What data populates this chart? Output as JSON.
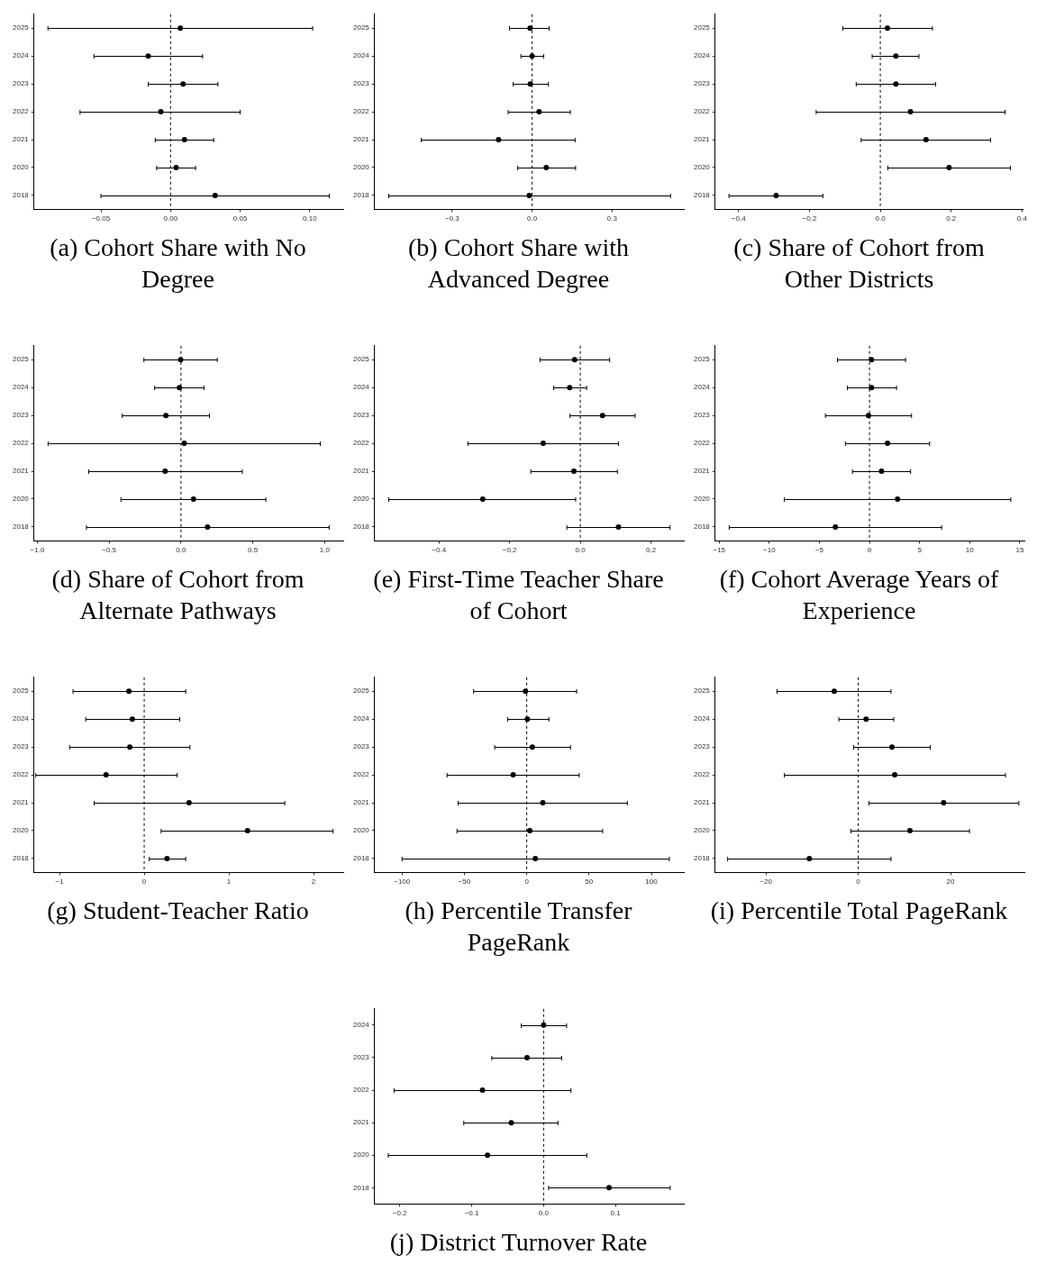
{
  "chart_data": [
    {
      "type": "scatter",
      "orientation": "horizontal",
      "title": "(a) Cohort Share with No Degree",
      "categories": [
        "2025",
        "2024",
        "2023",
        "2022",
        "2021",
        "2020",
        "2018"
      ],
      "values": [
        0.007,
        -0.016,
        0.009,
        -0.007,
        0.01,
        0.004,
        0.032
      ],
      "errors": [
        [
          -0.088,
          0.102
        ],
        [
          -0.055,
          0.023
        ],
        [
          -0.016,
          0.034
        ],
        [
          -0.065,
          0.05
        ],
        [
          -0.011,
          0.031
        ],
        [
          -0.01,
          0.018
        ],
        [
          -0.05,
          0.114
        ]
      ],
      "color": "#000000",
      "marker": "circle",
      "xlim": [
        -0.098,
        0.124
      ],
      "xticks": [
        {
          "value": -0.05,
          "label": "−0.05"
        },
        {
          "value": 0,
          "label": "0.00"
        },
        {
          "value": 0.05,
          "label": "0.05"
        },
        {
          "value": 0.1,
          "label": "0.10"
        }
      ],
      "ref_lines": [
        {
          "axis": "x",
          "value": 0,
          "line_style": "dashed",
          "color": "#000000"
        }
      ]
    },
    {
      "type": "scatter",
      "orientation": "horizontal",
      "title": "(b) Cohort Share with Advanced Degree",
      "categories": [
        "2025",
        "2024",
        "2023",
        "2022",
        "2021",
        "2020",
        "2018"
      ],
      "values": [
        -0.008,
        0.0,
        -0.007,
        0.026,
        -0.126,
        0.053,
        -0.011
      ],
      "errors": [
        [
          -0.085,
          0.064
        ],
        [
          -0.042,
          0.043
        ],
        [
          -0.071,
          0.061
        ],
        [
          -0.09,
          0.143
        ],
        [
          -0.416,
          0.161
        ],
        [
          -0.054,
          0.163
        ],
        [
          -0.538,
          0.519
        ]
      ],
      "color": "#000000",
      "marker": "circle",
      "xlim": [
        -0.591,
        0.569
      ],
      "xticks": [
        {
          "value": -0.3,
          "label": "−0.3"
        },
        {
          "value": 0,
          "label": "0.0"
        },
        {
          "value": 0.3,
          "label": "0.3"
        }
      ],
      "ref_lines": [
        {
          "axis": "x",
          "value": 0,
          "line_style": "dashed",
          "color": "#000000"
        }
      ]
    },
    {
      "type": "scatter",
      "orientation": "horizontal",
      "title": "(c) Share of Cohort from Other Districts",
      "categories": [
        "2025",
        "2024",
        "2023",
        "2022",
        "2021",
        "2020",
        "2018"
      ],
      "values": [
        0.02,
        0.044,
        0.044,
        0.085,
        0.129,
        0.194,
        -0.294
      ],
      "errors": [
        [
          -0.106,
          0.147
        ],
        [
          -0.023,
          0.109
        ],
        [
          -0.068,
          0.156
        ],
        [
          -0.181,
          0.352
        ],
        [
          -0.054,
          0.311
        ],
        [
          0.021,
          0.367
        ],
        [
          -0.427,
          -0.162
        ]
      ],
      "color": "#000000",
      "marker": "circle",
      "xlim": [
        -0.466,
        0.403
      ],
      "xticks": [
        {
          "value": -0.4,
          "label": "−0.4"
        },
        {
          "value": -0.2,
          "label": "−0.2"
        },
        {
          "value": 0,
          "label": "0.0"
        },
        {
          "value": 0.2,
          "label": "0.2"
        },
        {
          "value": 0.4,
          "label": "0.4"
        }
      ],
      "ref_lines": [
        {
          "axis": "x",
          "value": 0,
          "line_style": "dashed",
          "color": "#000000"
        }
      ]
    },
    {
      "type": "scatter",
      "orientation": "horizontal",
      "title": "(d) Share of Cohort from Alternate Pathways",
      "categories": [
        "2025",
        "2024",
        "2023",
        "2022",
        "2021",
        "2020",
        "2018"
      ],
      "values": [
        -0.002,
        -0.011,
        -0.105,
        0.023,
        -0.11,
        0.087,
        0.185
      ],
      "errors": [
        [
          -0.258,
          0.253
        ],
        [
          -0.183,
          0.16
        ],
        [
          -0.409,
          0.199
        ],
        [
          -0.925,
          0.97
        ],
        [
          -0.642,
          0.427
        ],
        [
          -0.418,
          0.591
        ],
        [
          -0.658,
          1.032
        ]
      ],
      "color": "#000000",
      "marker": "circle",
      "xlim": [
        -1.023,
        1.13
      ],
      "xticks": [
        {
          "value": -1,
          "label": "−1.0"
        },
        {
          "value": -0.5,
          "label": "−0.5"
        },
        {
          "value": 0,
          "label": "0.0"
        },
        {
          "value": 0.5,
          "label": "0.5"
        },
        {
          "value": 1,
          "label": "1.0"
        }
      ],
      "ref_lines": [
        {
          "axis": "x",
          "value": 0,
          "line_style": "dashed",
          "color": "#000000"
        }
      ]
    },
    {
      "type": "scatter",
      "orientation": "horizontal",
      "title": "(e) First-Time Teacher Share of Cohort",
      "categories": [
        "2025",
        "2024",
        "2023",
        "2022",
        "2021",
        "2020",
        "2018"
      ],
      "values": [
        -0.016,
        -0.03,
        0.063,
        -0.105,
        -0.018,
        -0.276,
        0.108
      ],
      "errors": [
        [
          -0.114,
          0.083
        ],
        [
          -0.075,
          0.018
        ],
        [
          -0.029,
          0.155
        ],
        [
          -0.318,
          0.108
        ],
        [
          -0.14,
          0.105
        ],
        [
          -0.542,
          -0.013
        ],
        [
          -0.038,
          0.254
        ]
      ],
      "color": "#000000",
      "marker": "circle",
      "xlim": [
        -0.582,
        0.293
      ],
      "xticks": [
        {
          "value": -0.4,
          "label": "−0.4"
        },
        {
          "value": -0.2,
          "label": "−0.2"
        },
        {
          "value": 0,
          "label": "0.0"
        },
        {
          "value": 0.2,
          "label": "0.2"
        }
      ],
      "ref_lines": [
        {
          "axis": "x",
          "value": 0,
          "line_style": "dashed",
          "color": "#000000"
        }
      ]
    },
    {
      "type": "scatter",
      "orientation": "horizontal",
      "title": "(f) Cohort Average Years of Experience",
      "categories": [
        "2025",
        "2024",
        "2023",
        "2022",
        "2021",
        "2020",
        "2018"
      ],
      "values": [
        0.2,
        0.2,
        -0.1,
        1.8,
        1.2,
        2.8,
        -3.4
      ],
      "errors": [
        [
          -3.2,
          3.6
        ],
        [
          -2.2,
          2.7
        ],
        [
          -4.4,
          4.2
        ],
        [
          -2.4,
          6.0
        ],
        [
          -1.7,
          4.1
        ],
        [
          -8.5,
          14.1
        ],
        [
          -14.0,
          7.2
        ]
      ],
      "color": "#000000",
      "marker": "circle",
      "xlim": [
        -15.4,
        15.46
      ],
      "xticks": [
        {
          "value": -15,
          "label": "−15"
        },
        {
          "value": -10,
          "label": "−10"
        },
        {
          "value": -5,
          "label": "−5"
        },
        0,
        5,
        10,
        15
      ],
      "ref_lines": [
        {
          "axis": "x",
          "value": 0,
          "line_style": "dashed",
          "color": "#000000"
        }
      ]
    },
    {
      "type": "scatter",
      "orientation": "horizontal",
      "title": "(g) Student-Teacher Ratio",
      "categories": [
        "2025",
        "2024",
        "2023",
        "2022",
        "2021",
        "2020",
        "2018"
      ],
      "values": [
        -0.18,
        -0.14,
        -0.17,
        -0.45,
        0.53,
        1.22,
        0.27
      ],
      "errors": [
        [
          -0.84,
          0.49
        ],
        [
          -0.69,
          0.42
        ],
        [
          -0.88,
          0.54
        ],
        [
          -1.28,
          0.39
        ],
        [
          -0.59,
          1.66
        ],
        [
          0.2,
          2.23
        ],
        [
          0.06,
          0.49
        ]
      ],
      "color": "#000000",
      "marker": "circle",
      "xlim": [
        -1.3,
        2.35
      ],
      "xticks": [
        {
          "value": -1,
          "label": "−1"
        },
        0,
        1,
        2
      ],
      "ref_lines": [
        {
          "axis": "x",
          "value": 0,
          "line_style": "dashed",
          "color": "#000000"
        }
      ]
    },
    {
      "type": "scatter",
      "orientation": "horizontal",
      "title": "(h) Percentile Transfer PageRank",
      "categories": [
        "2025",
        "2024",
        "2023",
        "2022",
        "2021",
        "2020",
        "2018"
      ],
      "values": [
        -1,
        0.5,
        4.5,
        -10.9,
        12.9,
        2.5,
        6.9
      ],
      "errors": [
        [
          -42.6,
          40
        ],
        [
          -15.3,
          17.8
        ],
        [
          -25.7,
          35.1
        ],
        [
          -63.9,
          42.1
        ],
        [
          -55,
          80.7
        ],
        [
          -55.9,
          60.9
        ],
        [
          -100,
          114.4
        ]
      ],
      "color": "#000000",
      "marker": "circle",
      "xlim": [
        -122,
        126
      ],
      "xticks": [
        {
          "value": -100,
          "label": "−100"
        },
        {
          "value": -50,
          "label": "−50"
        },
        0,
        50,
        100
      ],
      "ref_lines": [
        {
          "axis": "x",
          "value": 0,
          "line_style": "dashed",
          "color": "#000000"
        }
      ]
    },
    {
      "type": "scatter",
      "orientation": "horizontal",
      "title": "(i) Percentile Total PageRank",
      "categories": [
        "2025",
        "2024",
        "2023",
        "2022",
        "2021",
        "2020",
        "2018"
      ],
      "values": [
        -5.2,
        1.7,
        7.3,
        7.9,
        18.5,
        11.2,
        -10.6
      ],
      "errors": [
        [
          -17.6,
          7.1
        ],
        [
          -4.2,
          7.7
        ],
        [
          -1.0,
          15.6
        ],
        [
          -16.0,
          31.9
        ],
        [
          2.3,
          34.8
        ],
        [
          -1.6,
          24.1
        ],
        [
          -28.3,
          7.1
        ]
      ],
      "color": "#000000",
      "marker": "circle",
      "xlim": [
        -31,
        36
      ],
      "xticks": [
        {
          "value": -20,
          "label": "−20"
        },
        0,
        20
      ],
      "ref_lines": [
        {
          "axis": "x",
          "value": 0,
          "line_style": "dashed",
          "color": "#000000"
        }
      ]
    },
    {
      "type": "scatter",
      "orientation": "horizontal",
      "title": "(j) District Turnover Rate",
      "categories": [
        "2024",
        "2023",
        "2022",
        "2021",
        "2020",
        "2018"
      ],
      "values": [
        0.0,
        -0.023,
        -0.085,
        -0.045,
        -0.078,
        0.091
      ],
      "errors": [
        [
          -0.031,
          0.032
        ],
        [
          -0.072,
          0.025
        ],
        [
          -0.208,
          0.038
        ],
        [
          -0.111,
          0.02
        ],
        [
          -0.216,
          0.06
        ],
        [
          0.007,
          0.176
        ]
      ],
      "color": "#000000",
      "marker": "circle",
      "xlim": [
        -0.235,
        0.195
      ],
      "xticks": [
        {
          "value": -0.2,
          "label": "−0.2"
        },
        {
          "value": -0.1,
          "label": "−0.1"
        },
        {
          "value": 0,
          "label": "0.0"
        },
        {
          "value": 0.1,
          "label": "0.1"
        }
      ],
      "ref_lines": [
        {
          "axis": "x",
          "value": 0,
          "line_style": "dashed",
          "color": "#000000"
        }
      ]
    }
  ]
}
